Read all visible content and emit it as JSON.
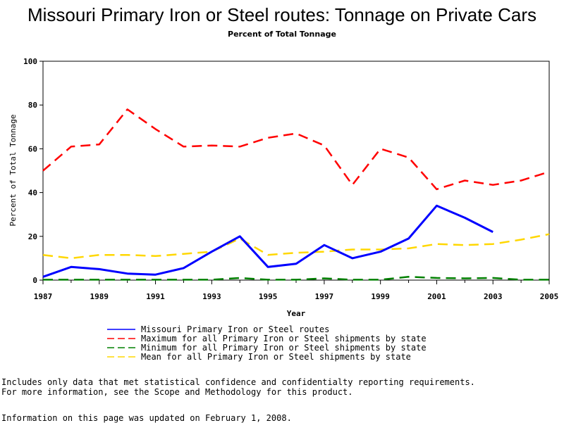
{
  "chart_data": {
    "type": "line",
    "title": "Missouri Primary Iron or Steel routes: Tonnage on Private Cars",
    "subtitle": "Percent of Total Tonnage",
    "xlabel": "Year",
    "ylabel": "Percent of Total Tonnage",
    "xlim": [
      1987,
      2005
    ],
    "ylim": [
      0,
      100
    ],
    "x_ticks": [
      1987,
      1989,
      1991,
      1993,
      1995,
      1997,
      1999,
      2001,
      2003,
      2005
    ],
    "y_ticks": [
      0,
      20,
      40,
      60,
      80,
      100
    ],
    "grid": false,
    "legend_position": "bottom",
    "x": [
      1987,
      1988,
      1989,
      1990,
      1991,
      1992,
      1993,
      1994,
      1995,
      1996,
      1997,
      1998,
      1999,
      2000,
      2001,
      2002,
      2003,
      2004,
      2005
    ],
    "series": [
      {
        "name": "Missouri Primary Iron or Steel routes",
        "color": "#0000ff",
        "style": "solid",
        "values": [
          1.5,
          6,
          5,
          3,
          2.5,
          5.5,
          13,
          20,
          6,
          7.5,
          16,
          10,
          13,
          19,
          34,
          28.5,
          22,
          null,
          null
        ]
      },
      {
        "name": "Maximum for all Primary Iron or Steel shipments by state",
        "color": "#ff0000",
        "style": "dashed",
        "values": [
          50,
          61,
          62,
          78,
          69,
          61,
          61.5,
          61,
          65,
          67,
          61.5,
          43.5,
          60,
          56,
          41.5,
          45.5,
          43.5,
          45.5,
          49.5
        ]
      },
      {
        "name": "Minimum for all Primary Iron or Steel shipments by state",
        "color": "#008000",
        "style": "dashed",
        "values": [
          0.2,
          0.2,
          0.2,
          0.2,
          0.2,
          0.2,
          0.2,
          1,
          0.2,
          0.2,
          0.8,
          0.2,
          0.2,
          1.5,
          1,
          0.8,
          1,
          0.2,
          0.2
        ]
      },
      {
        "name": "Mean for all Primary Iron or Steel shipments by state",
        "color": "#ffd700",
        "style": "dashed",
        "values": [
          11.5,
          10,
          11.5,
          11.5,
          11,
          12,
          13,
          19,
          11.5,
          12.5,
          13,
          14,
          14,
          14.5,
          16.5,
          16,
          16.5,
          18.5,
          21
        ]
      }
    ]
  },
  "notes": [
    "Includes only data that met statistical confidence and confidentialty reporting requirements.",
    "For more information, see the Scope and Methodology for this product."
  ],
  "updated_text": "Information on this page was updated on February 1, 2008."
}
